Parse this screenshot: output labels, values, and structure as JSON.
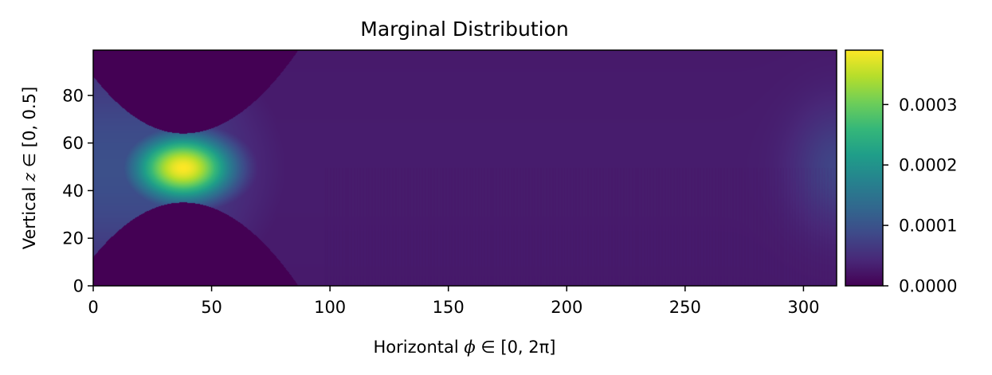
{
  "chart_data": {
    "type": "heatmap",
    "title": "Marginal Distribution",
    "xlabel_prefix": "Horizontal ",
    "xlabel_var": "ϕ",
    "xlabel_suffix": " ∈ [0, 2π]",
    "ylabel_prefix": "Vertical ",
    "ylabel_var": "z",
    "ylabel_suffix": " ∈ [0, 0.5]",
    "xlim": [
      0,
      314
    ],
    "ylim": [
      0,
      99
    ],
    "x_ticks": [
      0,
      50,
      100,
      150,
      200,
      250,
      300
    ],
    "y_ticks": [
      0,
      20,
      40,
      60,
      80
    ],
    "colorbar": {
      "colormap": "viridis",
      "range": [
        0,
        0.00039
      ],
      "ticks": [
        "0.0000",
        "0.0001",
        "0.0002",
        "0.0003"
      ],
      "tick_values": [
        0,
        0.0001,
        0.0002,
        0.0003
      ]
    },
    "features": {
      "peak": {
        "x": 38,
        "y": 49.5,
        "value": 0.00039
      },
      "peak_spread_x": 15,
      "peak_spread_y": 10,
      "background_right_value": 3e-05,
      "zero_regions": "hyperbolic dark regions above and below the peak for x < 88",
      "lower_boundary_at_x0": 12,
      "lower_boundary_min_at_peak": 35,
      "upper_boundary_at_x0": 88,
      "upper_boundary_min_at_peak": 64,
      "discontinuity_x": 98,
      "right_edge_glow_value": 8e-05
    }
  }
}
